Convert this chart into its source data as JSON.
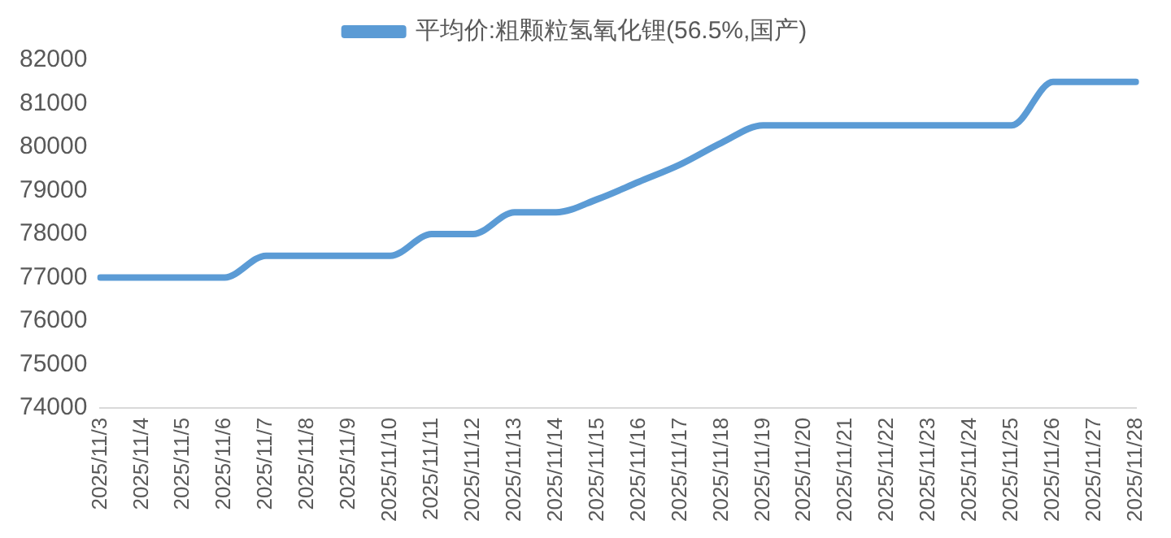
{
  "chart_data": {
    "type": "line",
    "categories": [
      "2025/11/3",
      "2025/11/4",
      "2025/11/5",
      "2025/11/6",
      "2025/11/7",
      "2025/11/8",
      "2025/11/9",
      "2025/11/10",
      "2025/11/11",
      "2025/11/12",
      "2025/11/13",
      "2025/11/14",
      "2025/11/15",
      "2025/11/16",
      "2025/11/17",
      "2025/11/18",
      "2025/11/19",
      "2025/11/20",
      "2025/11/21",
      "2025/11/22",
      "2025/11/23",
      "2025/11/24",
      "2025/11/25",
      "2025/11/26",
      "2025/11/27",
      "2025/11/28"
    ],
    "series": [
      {
        "name": "平均价:粗颗粒氢氧化锂(56.5%,国产)",
        "color": "#5b9bd5",
        "values": [
          77000,
          77000,
          77000,
          77000,
          77500,
          77500,
          77500,
          77500,
          78000,
          78000,
          78500,
          78500,
          78800,
          79200,
          79600,
          80100,
          80500,
          80500,
          80500,
          80500,
          80500,
          80500,
          80500,
          81500,
          81500,
          81500
        ]
      }
    ],
    "ylim": [
      74000,
      82000
    ],
    "yticks": [
      74000,
      75000,
      76000,
      77000,
      78000,
      79000,
      80000,
      81000,
      82000
    ],
    "grid": false,
    "legend": "top",
    "marker": "none",
    "line_style": "solid"
  }
}
